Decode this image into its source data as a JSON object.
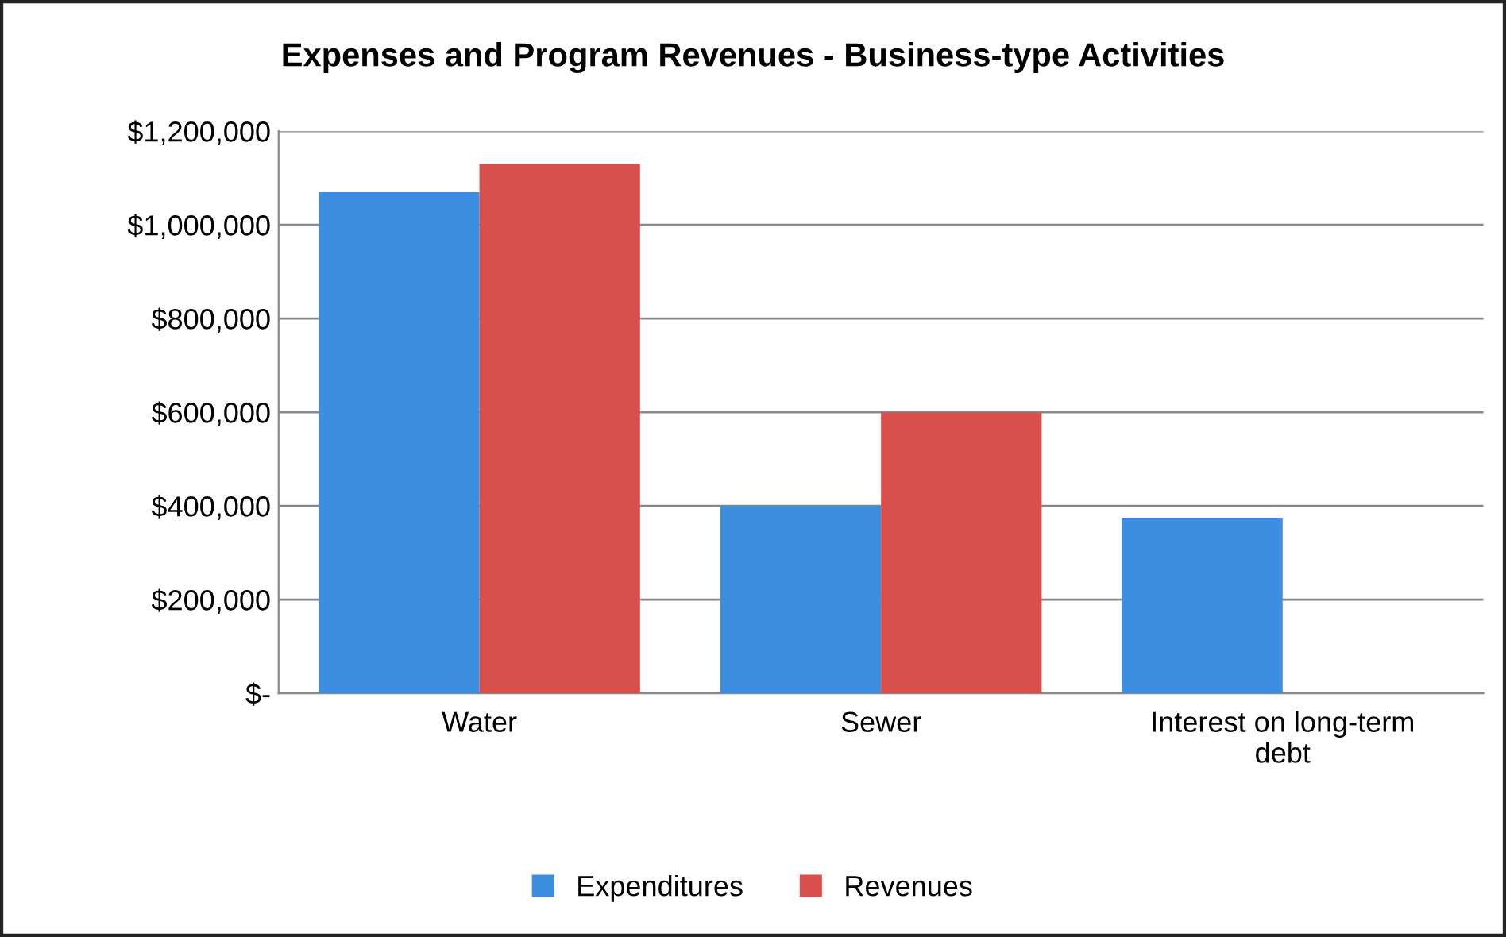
{
  "chart_data": {
    "type": "bar",
    "title": "Expenses and Program Revenues - Business-type Activities",
    "categories": [
      "Water",
      "Sewer",
      "Interest on long-term\ndebt"
    ],
    "series": [
      {
        "name": "Expenditures",
        "color": "#3b8ee0",
        "values": [
          1070000,
          400000,
          375000
        ]
      },
      {
        "name": "Revenues",
        "color": "#d94f4c",
        "values": [
          1130000,
          600000,
          null
        ]
      }
    ],
    "ylim": [
      0,
      1200000
    ],
    "yticks": [
      {
        "value": 0,
        "label": "$-"
      },
      {
        "value": 200000,
        "label": "$200,000"
      },
      {
        "value": 400000,
        "label": "$400,000"
      },
      {
        "value": 600000,
        "label": "$600,000"
      },
      {
        "value": 800000,
        "label": "$800,000"
      },
      {
        "value": 1000000,
        "label": "$1,000,000"
      },
      {
        "value": 1200000,
        "label": "$1,200,000"
      }
    ],
    "grid": "y",
    "legend": "bottom"
  }
}
